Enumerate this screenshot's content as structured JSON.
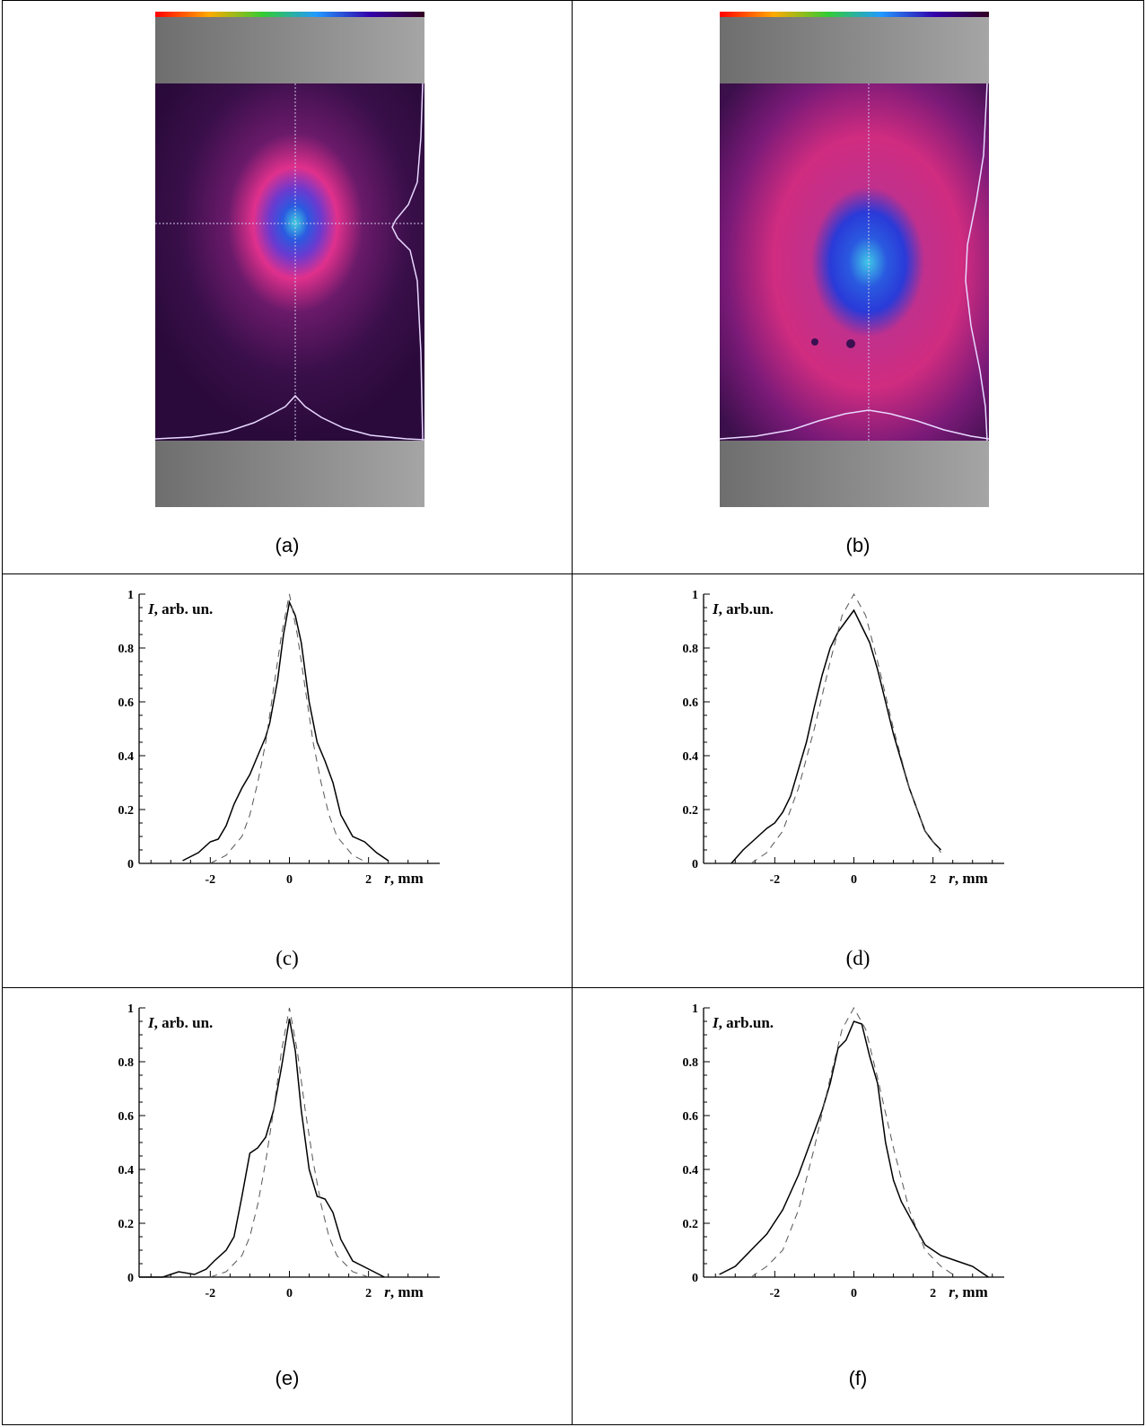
{
  "panels": {
    "a": {
      "caption": "(a)"
    },
    "b": {
      "caption": "(b)"
    },
    "c": {
      "caption": "(c)",
      "ylabel_italic": "I",
      "ylabel_rest": ", arb. un.",
      "xlabel_italic": "r",
      "xlabel_rest": ", mm"
    },
    "d": {
      "caption": "(d)",
      "ylabel_italic": "I",
      "ylabel_rest": ", arb.un.",
      "xlabel_italic": "r",
      "xlabel_rest": ", mm"
    },
    "e": {
      "caption": "(e)",
      "ylabel_italic": "I",
      "ylabel_rest": ", arb. un.",
      "xlabel_italic": "r",
      "xlabel_rest": ", mm"
    },
    "f": {
      "caption": "(f)",
      "ylabel_italic": "I",
      "ylabel_rest": ", arb.un.",
      "xlabel_italic": "r",
      "xlabel_rest": ", mm"
    }
  },
  "colors": {
    "beam_bg": "#3a0f4a",
    "beam_halo": "#e0308c",
    "beam_core": "#2a3ad8",
    "beam_center": "#40c8e8",
    "grey_band": "#8f8f8f",
    "profile_line": "#e8d8ff"
  },
  "chart_data": [
    {
      "panel": "c",
      "type": "line",
      "xlim": [
        -3.8,
        3.8
      ],
      "ylim": [
        0,
        1
      ],
      "xticks": [
        "-2",
        "0",
        "2"
      ],
      "xtick_values": [
        -2,
        0,
        2
      ],
      "yticks": [
        "0",
        "0.2",
        "0.4",
        "0.6",
        "0.8",
        "1"
      ],
      "ytick_values": [
        0,
        0.2,
        0.4,
        0.6,
        0.8,
        1
      ],
      "series": [
        {
          "style": "solid",
          "x": [
            -2.7,
            -2.3,
            -2.0,
            -1.8,
            -1.6,
            -1.4,
            -1.2,
            -1.0,
            -0.8,
            -0.6,
            -0.5,
            -0.3,
            -0.15,
            0,
            0.15,
            0.3,
            0.5,
            0.7,
            0.9,
            1.1,
            1.3,
            1.6,
            1.9,
            2.2,
            2.5
          ],
          "y": [
            0.01,
            0.04,
            0.08,
            0.09,
            0.14,
            0.22,
            0.28,
            0.33,
            0.4,
            0.47,
            0.52,
            0.68,
            0.85,
            0.97,
            0.92,
            0.82,
            0.6,
            0.45,
            0.38,
            0.3,
            0.18,
            0.1,
            0.08,
            0.04,
            0.01
          ]
        },
        {
          "style": "dashed",
          "x": [
            -2.0,
            -1.6,
            -1.2,
            -1.0,
            -0.8,
            -0.6,
            -0.4,
            -0.2,
            0,
            0.2,
            0.4,
            0.6,
            0.8,
            1.0,
            1.2,
            1.6,
            2.0
          ],
          "y": [
            0.0,
            0.03,
            0.1,
            0.18,
            0.3,
            0.45,
            0.65,
            0.85,
            1.0,
            0.85,
            0.65,
            0.45,
            0.3,
            0.18,
            0.1,
            0.03,
            0.0
          ]
        }
      ]
    },
    {
      "panel": "d",
      "type": "line",
      "xlim": [
        -3.8,
        3.8
      ],
      "ylim": [
        0,
        1
      ],
      "xticks": [
        "-2",
        "0",
        "2"
      ],
      "xtick_values": [
        -2,
        0,
        2
      ],
      "yticks": [
        "0",
        "0.2",
        "0.4",
        "0.6",
        "0.8",
        "1"
      ],
      "ytick_values": [
        0,
        0.2,
        0.4,
        0.6,
        0.8,
        1
      ],
      "series": [
        {
          "style": "solid",
          "x": [
            -3.1,
            -2.8,
            -2.5,
            -2.2,
            -2.0,
            -1.8,
            -1.6,
            -1.4,
            -1.2,
            -1.0,
            -0.8,
            -0.6,
            -0.4,
            -0.2,
            0,
            0.2,
            0.4,
            0.6,
            0.8,
            1.0,
            1.2,
            1.4,
            1.6,
            1.8,
            2.0,
            2.2
          ],
          "y": [
            0.0,
            0.05,
            0.09,
            0.13,
            0.15,
            0.19,
            0.25,
            0.35,
            0.45,
            0.58,
            0.7,
            0.8,
            0.86,
            0.9,
            0.94,
            0.88,
            0.82,
            0.72,
            0.6,
            0.48,
            0.38,
            0.28,
            0.2,
            0.12,
            0.08,
            0.05
          ]
        },
        {
          "style": "dashed",
          "x": [
            -2.6,
            -2.2,
            -1.8,
            -1.4,
            -1.0,
            -0.6,
            -0.3,
            0,
            0.3,
            0.6,
            1.0,
            1.4,
            1.8,
            2.2
          ],
          "y": [
            0.0,
            0.04,
            0.12,
            0.28,
            0.5,
            0.75,
            0.92,
            1.0,
            0.92,
            0.75,
            0.5,
            0.28,
            0.12,
            0.04
          ]
        }
      ]
    },
    {
      "panel": "e",
      "type": "line",
      "xlim": [
        -3.8,
        3.8
      ],
      "ylim": [
        0,
        1
      ],
      "xticks": [
        "-2",
        "0",
        "2"
      ],
      "xtick_values": [
        -2,
        0,
        2
      ],
      "yticks": [
        "0",
        "0.2",
        "0.4",
        "0.6",
        "0.8",
        "1"
      ],
      "ytick_values": [
        0,
        0.2,
        0.4,
        0.6,
        0.8,
        1
      ],
      "series": [
        {
          "style": "solid",
          "x": [
            -3.8,
            -3.2,
            -2.8,
            -2.4,
            -2.1,
            -1.9,
            -1.6,
            -1.4,
            -1.2,
            -1.0,
            -0.8,
            -0.6,
            -0.4,
            -0.2,
            0,
            0.15,
            0.3,
            0.5,
            0.7,
            0.9,
            1.1,
            1.3,
            1.6,
            2.0,
            2.4
          ],
          "y": [
            0.0,
            0.0,
            0.02,
            0.01,
            0.03,
            0.06,
            0.1,
            0.15,
            0.3,
            0.46,
            0.48,
            0.52,
            0.62,
            0.78,
            0.96,
            0.84,
            0.62,
            0.4,
            0.3,
            0.29,
            0.24,
            0.14,
            0.06,
            0.03,
            0.0
          ]
        },
        {
          "style": "dashed",
          "x": [
            -2.0,
            -1.6,
            -1.2,
            -1.0,
            -0.8,
            -0.6,
            -0.4,
            -0.2,
            0,
            0.2,
            0.4,
            0.6,
            0.8,
            1.0,
            1.2,
            1.6,
            2.0
          ],
          "y": [
            0.0,
            0.02,
            0.08,
            0.15,
            0.27,
            0.43,
            0.62,
            0.84,
            1.0,
            0.84,
            0.62,
            0.43,
            0.27,
            0.15,
            0.08,
            0.02,
            0.0
          ]
        }
      ]
    },
    {
      "panel": "f",
      "type": "line",
      "xlim": [
        -3.8,
        3.8
      ],
      "ylim": [
        0,
        1
      ],
      "xticks": [
        "-2",
        "0",
        "2"
      ],
      "xtick_values": [
        -2,
        0,
        2
      ],
      "yticks": [
        "0",
        "0.2",
        "0.4",
        "0.6",
        "0.8",
        "1"
      ],
      "ytick_values": [
        0,
        0.2,
        0.4,
        0.6,
        0.8,
        1
      ],
      "series": [
        {
          "style": "solid",
          "x": [
            -3.4,
            -3.0,
            -2.6,
            -2.2,
            -1.8,
            -1.4,
            -1.1,
            -0.8,
            -0.6,
            -0.4,
            -0.2,
            0,
            0.2,
            0.4,
            0.6,
            0.8,
            1.0,
            1.2,
            1.5,
            1.8,
            2.2,
            2.6,
            3.0,
            3.4
          ],
          "y": [
            0.01,
            0.04,
            0.1,
            0.16,
            0.25,
            0.38,
            0.5,
            0.62,
            0.72,
            0.85,
            0.88,
            0.95,
            0.94,
            0.82,
            0.72,
            0.5,
            0.36,
            0.28,
            0.2,
            0.12,
            0.08,
            0.06,
            0.04,
            0.0
          ]
        },
        {
          "style": "dashed",
          "x": [
            -2.6,
            -2.2,
            -1.8,
            -1.4,
            -1.0,
            -0.6,
            -0.3,
            0,
            0.3,
            0.6,
            1.0,
            1.4,
            1.8,
            2.2,
            2.6
          ],
          "y": [
            0.0,
            0.04,
            0.1,
            0.25,
            0.48,
            0.74,
            0.92,
            1.0,
            0.92,
            0.74,
            0.48,
            0.25,
            0.1,
            0.04,
            0.0
          ]
        }
      ]
    }
  ]
}
